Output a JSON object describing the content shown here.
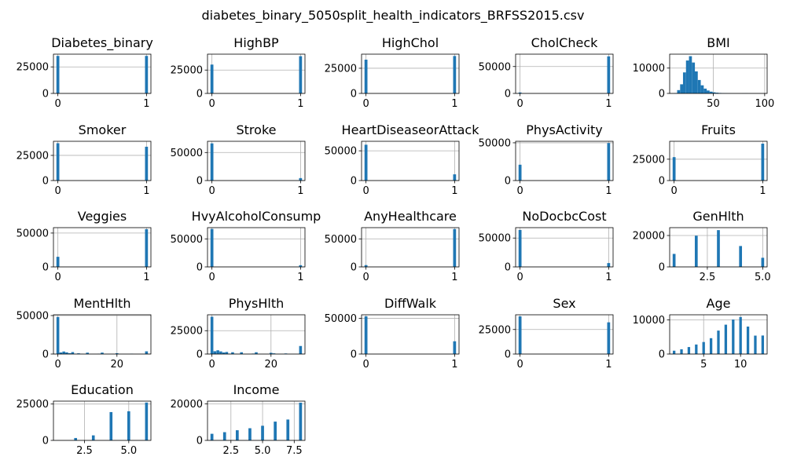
{
  "figure_title": "diabetes_binary_5050split_health_indicators_BRFSS2015.csv",
  "colors": {
    "bar": "#1f77b4"
  },
  "chart_data": [
    {
      "type": "bar",
      "title": "Diabetes_binary",
      "xlim": [
        -0.05,
        1.05
      ],
      "ylim": [
        0,
        37000
      ],
      "xticks": [
        0,
        1
      ],
      "xtick_labels": [
        "0",
        "1"
      ],
      "yticks": [
        0,
        25000
      ],
      "ytick_labels": [
        "0",
        "25000"
      ],
      "bin_width": 0.033,
      "bars": [
        [
          0,
          35346
        ],
        [
          1,
          35346
        ]
      ]
    },
    {
      "type": "bar",
      "title": "HighBP",
      "xlim": [
        -0.05,
        1.05
      ],
      "ylim": [
        0,
        42000
      ],
      "xticks": [
        0,
        1
      ],
      "xtick_labels": [
        "0",
        "1"
      ],
      "yticks": [
        0,
        25000
      ],
      "ytick_labels": [
        "0",
        "25000"
      ],
      "bin_width": 0.033,
      "bars": [
        [
          0,
          30860
        ],
        [
          1,
          39832
        ]
      ]
    },
    {
      "type": "bar",
      "title": "HighChol",
      "xlim": [
        -0.05,
        1.05
      ],
      "ylim": [
        0,
        39000
      ],
      "xticks": [
        0,
        1
      ],
      "xtick_labels": [
        "0",
        "1"
      ],
      "yticks": [
        0,
        25000
      ],
      "ytick_labels": [
        "0",
        "25000"
      ],
      "bin_width": 0.033,
      "bars": [
        [
          0,
          33529
        ],
        [
          1,
          37163
        ]
      ]
    },
    {
      "type": "bar",
      "title": "CholCheck",
      "xlim": [
        -0.05,
        1.05
      ],
      "ylim": [
        0,
        73000
      ],
      "xticks": [
        0,
        1
      ],
      "xtick_labels": [
        "0",
        "1"
      ],
      "yticks": [
        0,
        50000
      ],
      "ytick_labels": [
        "0",
        "50000"
      ],
      "bin_width": 0.033,
      "bars": [
        [
          0,
          1749
        ],
        [
          1,
          68943
        ]
      ]
    },
    {
      "type": "bar",
      "title": "BMI",
      "xlim": [
        7.6,
        102.4
      ],
      "ylim": [
        0,
        15500
      ],
      "xticks": [
        50,
        100
      ],
      "xtick_labels": [
        "50",
        "100"
      ],
      "yticks": [
        0,
        10000
      ],
      "ytick_labels": [
        "0",
        "10000"
      ],
      "bin_width": 2.87,
      "bars": [
        [
          13.4,
          150
        ],
        [
          16.3,
          1300
        ],
        [
          19.2,
          3600
        ],
        [
          22.0,
          8300
        ],
        [
          24.9,
          13000
        ],
        [
          27.8,
          14700
        ],
        [
          30.7,
          12200
        ],
        [
          33.5,
          8700
        ],
        [
          36.4,
          5300
        ],
        [
          39.3,
          3200
        ],
        [
          42.2,
          1900
        ],
        [
          45.0,
          1150
        ],
        [
          47.9,
          700
        ],
        [
          50.8,
          420
        ],
        [
          53.7,
          280
        ],
        [
          56.5,
          180
        ],
        [
          59.4,
          110
        ],
        [
          62.3,
          60
        ],
        [
          65.2,
          40
        ],
        [
          68.0,
          30
        ],
        [
          70.9,
          20
        ],
        [
          73.8,
          20
        ],
        [
          76.7,
          15
        ],
        [
          79.5,
          40
        ],
        [
          82.4,
          50
        ],
        [
          85.3,
          20
        ],
        [
          88.2,
          15
        ],
        [
          91.0,
          10
        ],
        [
          93.9,
          10
        ],
        [
          96.8,
          15
        ]
      ]
    },
    {
      "type": "bar",
      "title": "Smoker",
      "xlim": [
        -0.05,
        1.05
      ],
      "ylim": [
        0,
        39000
      ],
      "xticks": [
        0,
        1
      ],
      "xtick_labels": [
        "0",
        "1"
      ],
      "yticks": [
        0,
        25000
      ],
      "ytick_labels": [
        "0",
        "25000"
      ],
      "bin_width": 0.033,
      "bars": [
        [
          0,
          37094
        ],
        [
          1,
          33598
        ]
      ]
    },
    {
      "type": "bar",
      "title": "Stroke",
      "xlim": [
        -0.05,
        1.05
      ],
      "ylim": [
        0,
        70000
      ],
      "xticks": [
        0,
        1
      ],
      "xtick_labels": [
        "0",
        "1"
      ],
      "yticks": [
        0,
        50000
      ],
      "ytick_labels": [
        "0",
        "50000"
      ],
      "bin_width": 0.033,
      "bars": [
        [
          0,
          66297
        ],
        [
          1,
          4395
        ]
      ]
    },
    {
      "type": "bar",
      "title": "HeartDiseaseorAttack",
      "xlim": [
        -0.05,
        1.05
      ],
      "ylim": [
        0,
        66000
      ],
      "xticks": [
        0,
        1
      ],
      "xtick_labels": [
        "0",
        "1"
      ],
      "yticks": [
        0,
        50000
      ],
      "ytick_labels": [
        "0",
        "50000"
      ],
      "bin_width": 0.033,
      "bars": [
        [
          0,
          60243
        ],
        [
          1,
          10449
        ]
      ]
    },
    {
      "type": "bar",
      "title": "PhysActivity",
      "xlim": [
        -0.05,
        1.05
      ],
      "ylim": [
        0,
        52000
      ],
      "xticks": [
        0,
        1
      ],
      "xtick_labels": [
        "0",
        "1"
      ],
      "yticks": [
        0,
        50000
      ],
      "ytick_labels": [
        "0",
        "50000"
      ],
      "bin_width": 0.033,
      "bars": [
        [
          0,
          20993
        ],
        [
          1,
          49699
        ]
      ]
    },
    {
      "type": "bar",
      "title": "Fruits",
      "xlim": [
        -0.05,
        1.05
      ],
      "ylim": [
        0,
        46000
      ],
      "xticks": [
        0,
        1
      ],
      "xtick_labels": [
        "0",
        "1"
      ],
      "yticks": [
        0,
        25000
      ],
      "ytick_labels": [
        "0",
        "25000"
      ],
      "bin_width": 0.033,
      "bars": [
        [
          0,
          27443
        ],
        [
          1,
          43249
        ]
      ]
    },
    {
      "type": "bar",
      "title": "Veggies",
      "xlim": [
        -0.05,
        1.05
      ],
      "ylim": [
        0,
        58000
      ],
      "xticks": [
        0,
        1
      ],
      "xtick_labels": [
        "0",
        "1"
      ],
      "yticks": [
        0,
        50000
      ],
      "ytick_labels": [
        "0",
        "50000"
      ],
      "bin_width": 0.033,
      "bars": [
        [
          0,
          14932
        ],
        [
          1,
          55760
        ]
      ]
    },
    {
      "type": "bar",
      "title": "HvyAlcoholConsump",
      "xlim": [
        -0.05,
        1.05
      ],
      "ylim": [
        0,
        70000
      ],
      "xticks": [
        0,
        1
      ],
      "xtick_labels": [
        "0",
        "1"
      ],
      "yticks": [
        0,
        50000
      ],
      "ytick_labels": [
        "0",
        "50000"
      ],
      "bin_width": 0.033,
      "bars": [
        [
          0,
          67672
        ],
        [
          1,
          3020
        ]
      ]
    },
    {
      "type": "bar",
      "title": "AnyHealthcare",
      "xlim": [
        -0.05,
        1.05
      ],
      "ylim": [
        0,
        70000
      ],
      "xticks": [
        0,
        1
      ],
      "xtick_labels": [
        "0",
        "1"
      ],
      "yticks": [
        0,
        50000
      ],
      "ytick_labels": [
        "0",
        "50000"
      ],
      "bin_width": 0.033,
      "bars": [
        [
          0,
          3184
        ],
        [
          1,
          67508
        ]
      ]
    },
    {
      "type": "bar",
      "title": "NoDocbcCost",
      "xlim": [
        -0.05,
        1.05
      ],
      "ylim": [
        0,
        68000
      ],
      "xticks": [
        0,
        1
      ],
      "xtick_labels": [
        "0",
        "1"
      ],
      "yticks": [
        0,
        50000
      ],
      "ytick_labels": [
        "0",
        "50000"
      ],
      "bin_width": 0.033,
      "bars": [
        [
          0,
          64053
        ],
        [
          1,
          6639
        ]
      ]
    },
    {
      "type": "bar",
      "title": "GenHlth",
      "xlim": [
        0.8,
        5.2
      ],
      "ylim": [
        0,
        25000
      ],
      "xticks": [
        2.5,
        5.0
      ],
      "xtick_labels": [
        "2.5",
        "5.0"
      ],
      "yticks": [
        0,
        20000
      ],
      "ytick_labels": [
        "0",
        "20000"
      ],
      "bin_width": 0.13,
      "bars": [
        [
          1,
          8282
        ],
        [
          2,
          19872
        ],
        [
          3,
          23427
        ],
        [
          4,
          13303
        ],
        [
          5,
          5808
        ]
      ]
    },
    {
      "type": "bar",
      "title": "MentHlth",
      "xlim": [
        -1.5,
        31.5
      ],
      "ylim": [
        0,
        51000
      ],
      "xticks": [
        0,
        20
      ],
      "xtick_labels": [
        "0",
        "20"
      ],
      "yticks": [
        0,
        50000
      ],
      "ytick_labels": [
        "0",
        "50000"
      ],
      "bin_width": 0.95,
      "bars": [
        [
          0,
          48091
        ],
        [
          1,
          2051
        ],
        [
          2,
          3267
        ],
        [
          3,
          2154
        ],
        [
          4,
          1049
        ],
        [
          5,
          2519
        ],
        [
          6,
          301
        ],
        [
          7,
          921
        ],
        [
          8,
          180
        ],
        [
          10,
          1780
        ],
        [
          14,
          350
        ],
        [
          15,
          1860
        ],
        [
          20,
          1080
        ],
        [
          25,
          380
        ],
        [
          30,
          3500
        ]
      ]
    },
    {
      "type": "bar",
      "title": "PhysHlth",
      "xlim": [
        -1.5,
        31.5
      ],
      "ylim": [
        0,
        42000
      ],
      "xticks": [
        0,
        20
      ],
      "xtick_labels": [
        "0",
        "20"
      ],
      "yticks": [
        0,
        25000
      ],
      "ytick_labels": [
        "0",
        "25000"
      ],
      "bin_width": 0.95,
      "bars": [
        [
          0,
          39915
        ],
        [
          1,
          3000
        ],
        [
          2,
          4000
        ],
        [
          3,
          2800
        ],
        [
          4,
          1700
        ],
        [
          5,
          2200
        ],
        [
          6,
          400
        ],
        [
          7,
          1900
        ],
        [
          8,
          250
        ],
        [
          10,
          1900
        ],
        [
          14,
          500
        ],
        [
          15,
          1900
        ],
        [
          20,
          1300
        ],
        [
          21,
          700
        ],
        [
          25,
          600
        ],
        [
          30,
          8600
        ]
      ]
    },
    {
      "type": "bar",
      "title": "DiffWalk",
      "xlim": [
        -0.05,
        1.05
      ],
      "ylim": [
        0,
        55000
      ],
      "xticks": [
        0,
        1
      ],
      "xtick_labels": [
        "0",
        "1"
      ],
      "yticks": [
        0,
        50000
      ],
      "ytick_labels": [
        "0",
        "50000"
      ],
      "bin_width": 0.033,
      "bars": [
        [
          0,
          52826
        ],
        [
          1,
          17866
        ]
      ]
    },
    {
      "type": "bar",
      "title": "Sex",
      "xlim": [
        -0.05,
        1.05
      ],
      "ylim": [
        0,
        40000
      ],
      "xticks": [
        0,
        1
      ],
      "xtick_labels": [
        "0",
        "1"
      ],
      "yticks": [
        0,
        25000
      ],
      "ytick_labels": [
        "0",
        "25000"
      ],
      "bin_width": 0.033,
      "bars": [
        [
          0,
          38386
        ],
        [
          1,
          32306
        ]
      ]
    },
    {
      "type": "bar",
      "title": "Age",
      "xlim": [
        0.4,
        13.6
      ],
      "ylim": [
        0,
        11500
      ],
      "xticks": [
        5,
        10
      ],
      "xtick_labels": [
        "5",
        "10"
      ],
      "yticks": [
        0,
        10000
      ],
      "ytick_labels": [
        "0",
        "10000"
      ],
      "bin_width": 0.35,
      "bars": [
        [
          1,
          979
        ],
        [
          2,
          1396
        ],
        [
          3,
          2049
        ],
        [
          4,
          2793
        ],
        [
          5,
          3520
        ],
        [
          6,
          4648
        ],
        [
          7,
          6872
        ],
        [
          8,
          8603
        ],
        [
          9,
          10112
        ],
        [
          10,
          10856
        ],
        [
          11,
          8044
        ],
        [
          12,
          5394
        ],
        [
          13,
          5426
        ]
      ]
    },
    {
      "type": "bar",
      "title": "Education",
      "xlim": [
        0.75,
        6.25
      ],
      "ylim": [
        0,
        27000
      ],
      "xticks": [
        2.5,
        5.0
      ],
      "xtick_labels": [
        "2.5",
        "5.0"
      ],
      "yticks": [
        0,
        25000
      ],
      "ytick_labels": [
        "0",
        "25000"
      ],
      "bin_width": 0.16,
      "bars": [
        [
          1,
          75
        ],
        [
          2,
          1647
        ],
        [
          3,
          3447
        ],
        [
          4,
          19473
        ],
        [
          5,
          20030
        ],
        [
          6,
          26020
        ]
      ]
    },
    {
      "type": "bar",
      "title": "Income",
      "xlim": [
        0.65,
        8.35
      ],
      "ylim": [
        0,
        21500
      ],
      "xticks": [
        2.5,
        5.0,
        7.5
      ],
      "xtick_labels": [
        "2.5",
        "5.0",
        "7.5"
      ],
      "yticks": [
        0,
        20000
      ],
      "ytick_labels": [
        "0",
        "20000"
      ],
      "bin_width": 0.23,
      "bars": [
        [
          1,
          3611
        ],
        [
          2,
          4498
        ],
        [
          3,
          5557
        ],
        [
          4,
          6658
        ],
        [
          5,
          8010
        ],
        [
          6,
          10287
        ],
        [
          7,
          11425
        ],
        [
          8,
          20646
        ]
      ]
    }
  ]
}
